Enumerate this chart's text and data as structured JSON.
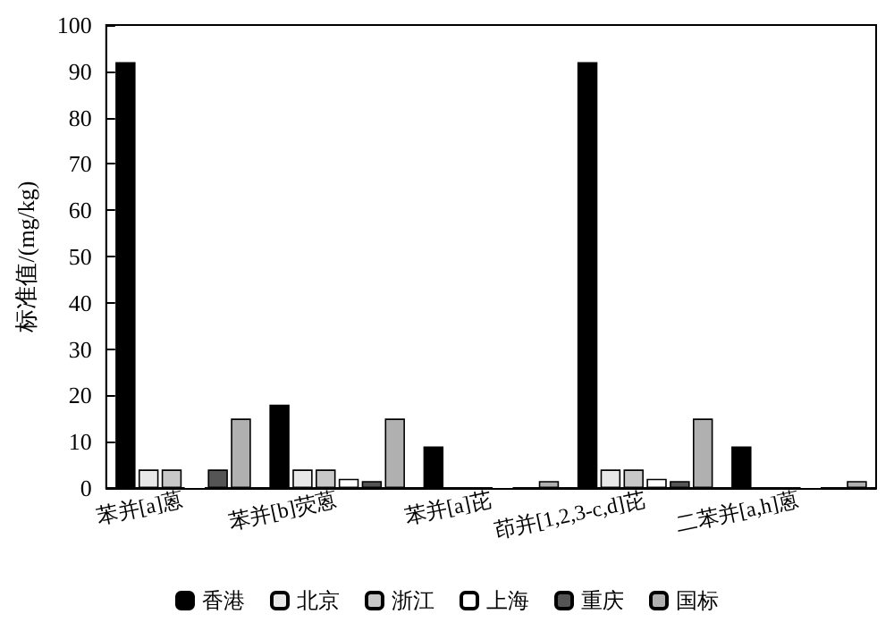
{
  "chart_data": {
    "type": "bar",
    "ylabel": "标准值/(mg/kg)",
    "categories": [
      "苯并[a]蒽",
      "苯并[b]荧蒽",
      "苯并[a]芘",
      "茚并[1,2,3-c,d]芘",
      "二苯并[a,h]蒽"
    ],
    "series": [
      {
        "name": "香港",
        "color": "#000000",
        "values": [
          92,
          18,
          9,
          92,
          9
        ]
      },
      {
        "name": "北京",
        "color": "#e8e8e8",
        "values": [
          4,
          4,
          null,
          4,
          null
        ]
      },
      {
        "name": "浙江",
        "color": "#c8c8c8",
        "values": [
          4,
          4,
          null,
          4,
          null
        ]
      },
      {
        "name": "上海",
        "color": "#ffffff",
        "values": [
          0.2,
          2,
          0.2,
          2,
          0.2
        ]
      },
      {
        "name": "重庆",
        "color": "#555555",
        "values": [
          4,
          1.5,
          0,
          1.5,
          0
        ]
      },
      {
        "name": "国标",
        "color": "#b0b0b0",
        "values": [
          15,
          15,
          1.5,
          15,
          1.5
        ]
      }
    ],
    "ylim": [
      0,
      100
    ],
    "yticks": [
      0,
      10,
      20,
      30,
      40,
      50,
      60,
      70,
      80,
      90,
      100
    ],
    "grid": false,
    "legend": "bottom"
  }
}
